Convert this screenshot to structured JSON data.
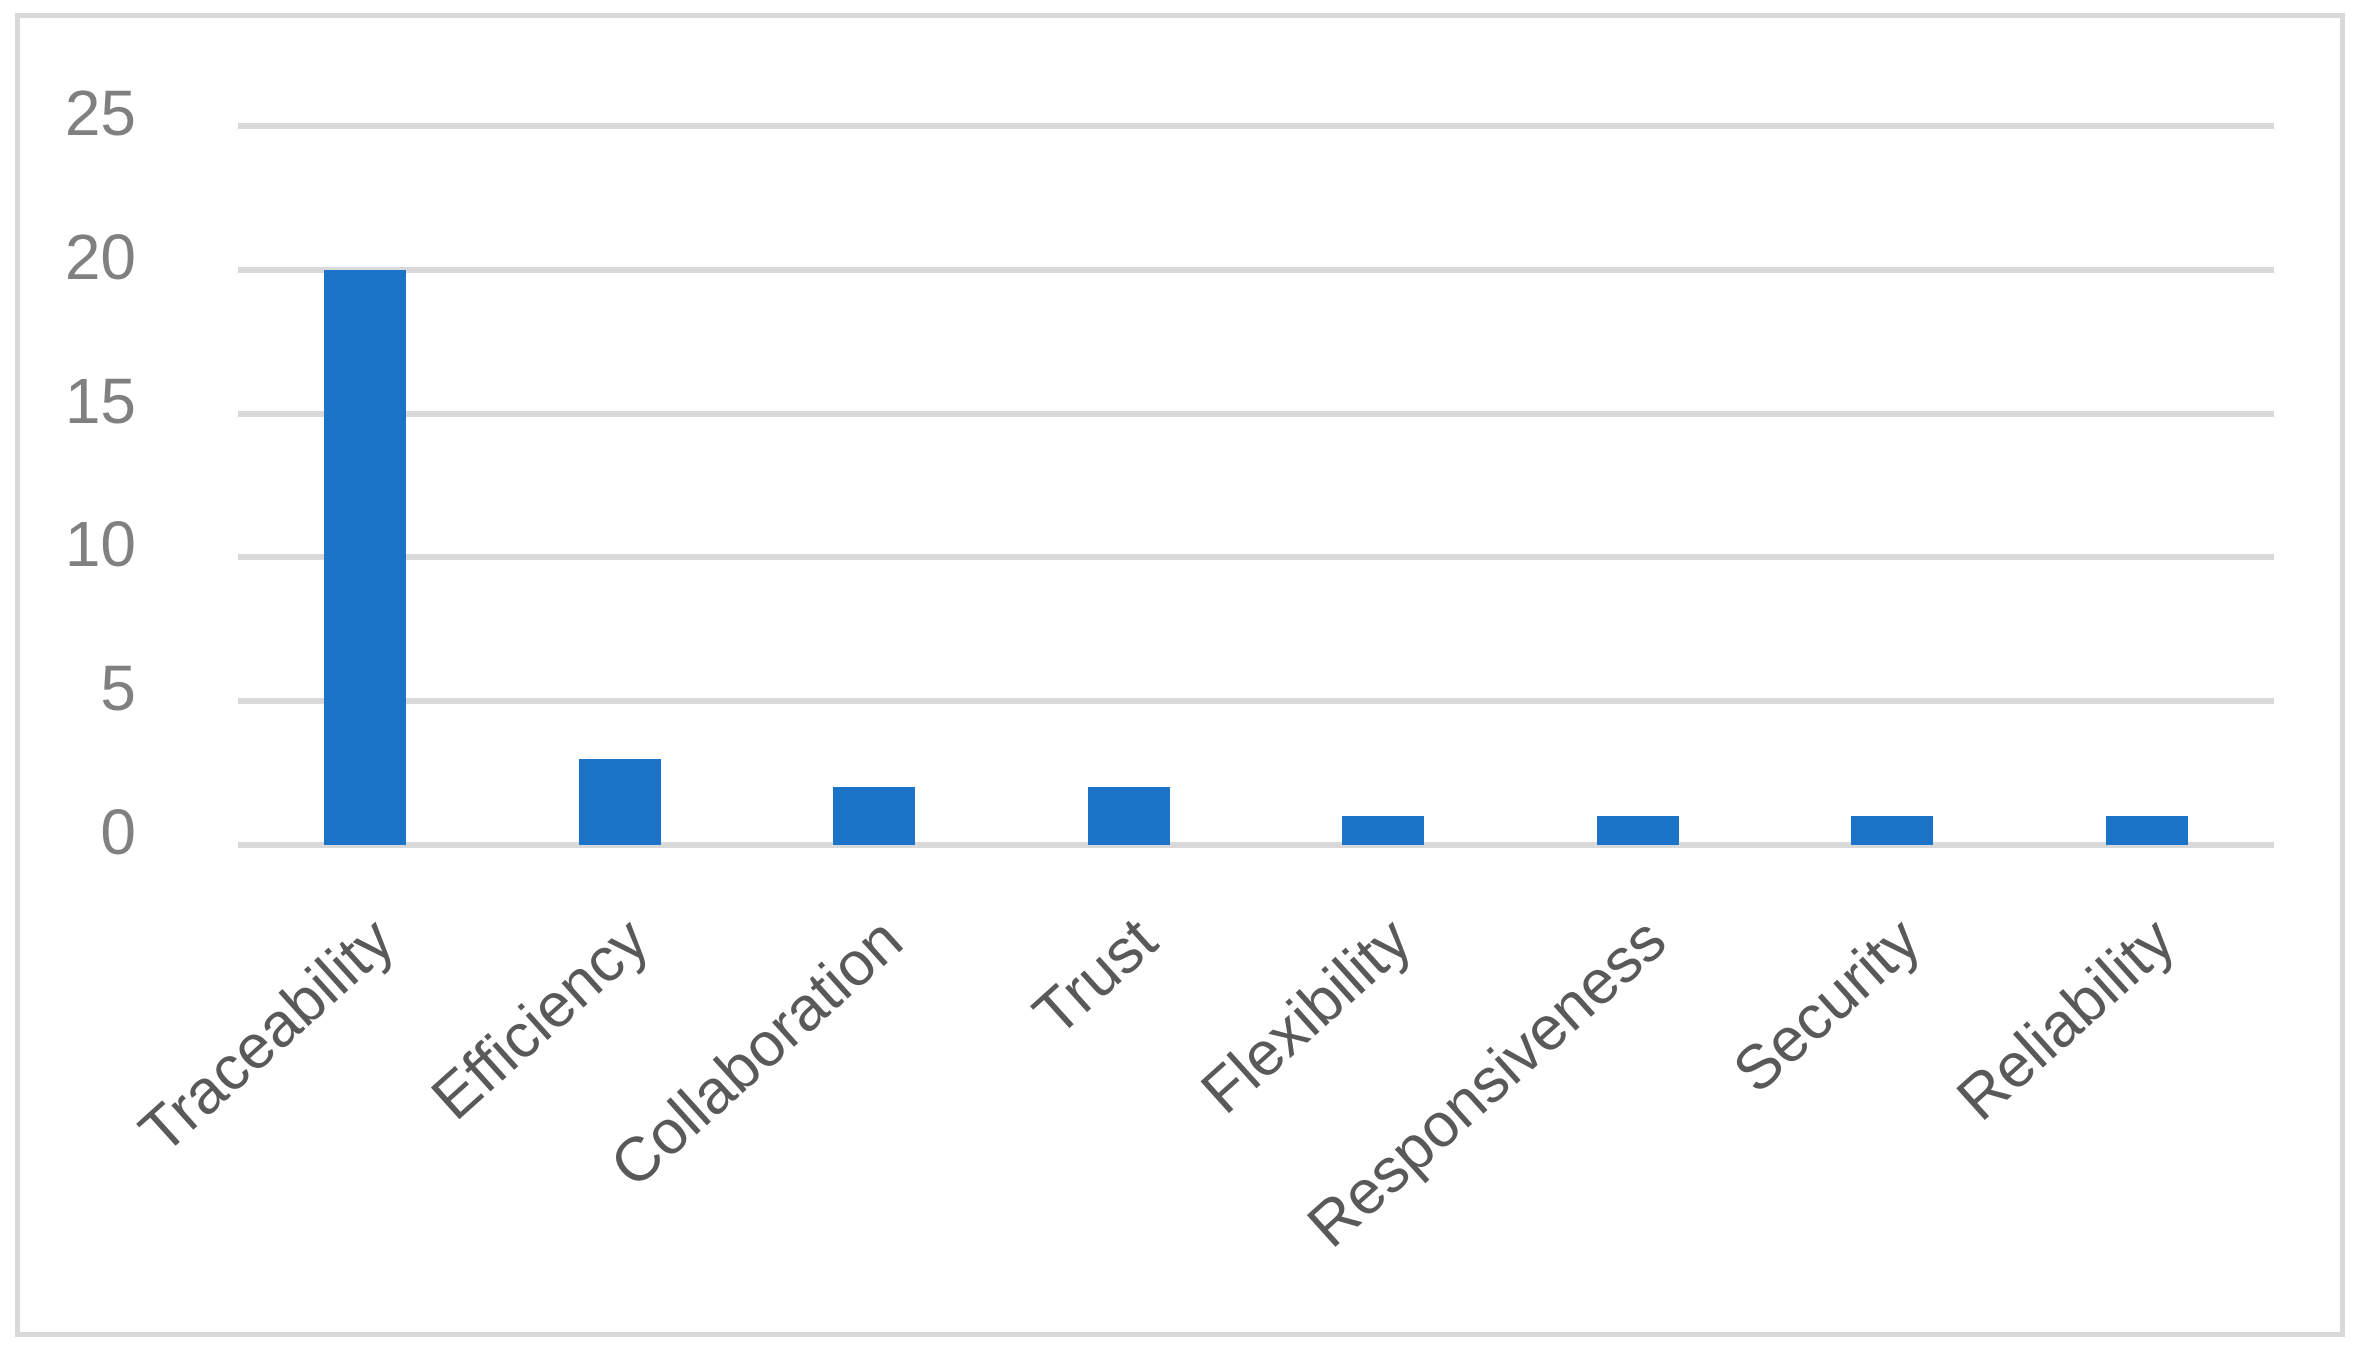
{
  "chart_data": {
    "type": "bar",
    "title": "",
    "xlabel": "",
    "ylabel": "",
    "categories": [
      "Traceability",
      "Efficiency",
      "Collaboration",
      "Trust",
      "Flexibility",
      "Responsiveness",
      "Security",
      "Reliability"
    ],
    "values": [
      20,
      3,
      2,
      2,
      1,
      1,
      1,
      1
    ],
    "ylim": [
      0,
      25
    ],
    "yticks": [
      0,
      5,
      10,
      15,
      20,
      25
    ],
    "grid": true,
    "legend_position": "none",
    "colors": {
      "bar": "#1B74C8",
      "gridline": "#D9D9D9",
      "axis_line": "#D9D9D9",
      "chart_border": "#D9D9D9",
      "y_tick_label": "#808080",
      "x_category_label": "#595959",
      "background": "#FFFFFF"
    }
  }
}
